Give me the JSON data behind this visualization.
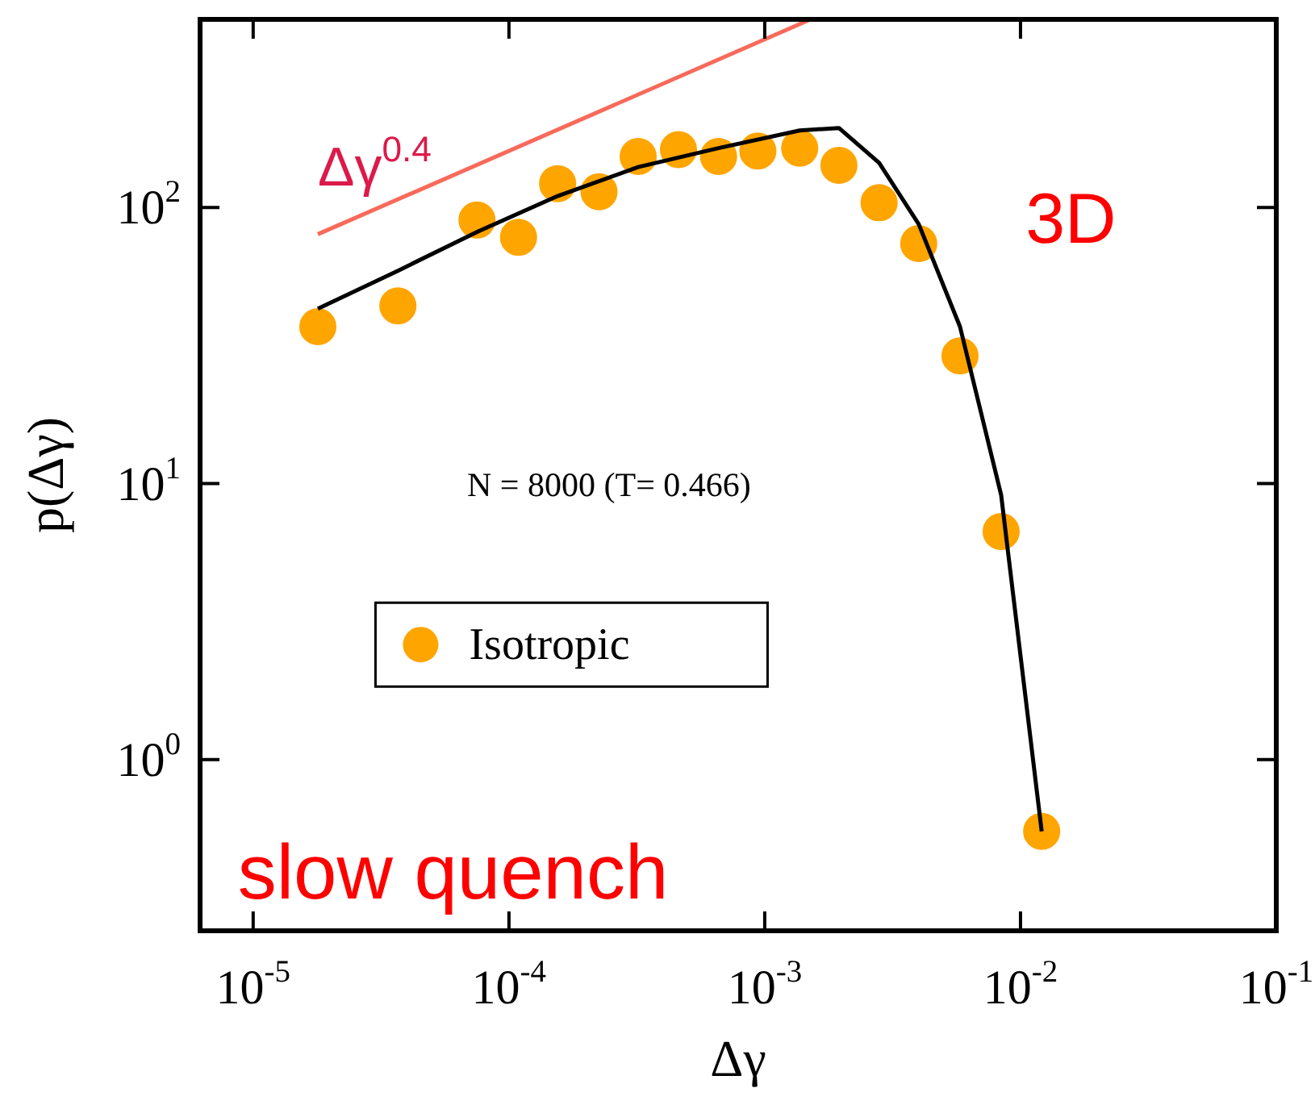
{
  "chart_data": {
    "type": "scatter",
    "xlabel": "Δγ",
    "ylabel": "p(Δγ)",
    "log": "xy",
    "xlim": [
      6.2e-06,
      0.1
    ],
    "ylim": [
      0.24,
      480
    ],
    "xticks": [
      {
        "value": 1e-05,
        "label": "10$^{-5}$"
      },
      {
        "value": 0.0001,
        "label": "10$^{-4}$"
      },
      {
        "value": 0.001,
        "label": "10$^{-3}$"
      },
      {
        "value": 0.01,
        "label": "10$^{-2}$"
      },
      {
        "value": 0.1,
        "label": "10$^{-1}$"
      }
    ],
    "yticks": [
      {
        "value": 1,
        "label": "10$^{0}$"
      },
      {
        "value": 10,
        "label": "10$^{1}$"
      },
      {
        "value": 100,
        "label": "10$^{2}$"
      }
    ],
    "grid": false,
    "legend": "bottom left",
    "series": [
      {
        "type": "line",
        "marker": "none",
        "name": "Δγ$^{0.4}$",
        "color": "#f86a5a",
        "x": [
          1.79e-05,
          0.00148
        ],
        "values": [
          80,
          476
        ]
      },
      {
        "type": "line",
        "marker": "none",
        "color": "#000000",
        "x": [
          1.79e-05,
          3.68e-05,
          7.6e-05,
          0.000155,
          0.00032,
          0.00066,
          0.00137,
          0.00195,
          0.0028,
          0.004,
          0.0058,
          0.0084,
          0.0121
        ],
        "values": [
          43,
          59,
          82,
          110,
          140,
          164,
          190,
          194,
          145,
          87,
          37,
          9.1,
          0.55
        ]
      },
      {
        "marker": "circle",
        "name": "Isotropic",
        "color": "#ffa500",
        "x": [
          1.79e-05,
          3.68e-05,
          7.5e-05,
          0.000109,
          0.000155,
          0.000225,
          0.00032,
          0.00046,
          0.00066,
          0.00094,
          0.00137,
          0.00195,
          0.0028,
          0.004,
          0.0058,
          0.0084,
          0.0121
        ],
        "values": [
          37,
          44,
          90,
          78,
          122,
          114,
          153,
          162,
          153,
          160,
          164,
          142,
          104,
          74,
          29,
          6.7,
          0.55
        ]
      }
    ],
    "annotations": [
      "3D",
      "N = 8000 (T= 0.466)",
      "slow quench"
    ]
  }
}
